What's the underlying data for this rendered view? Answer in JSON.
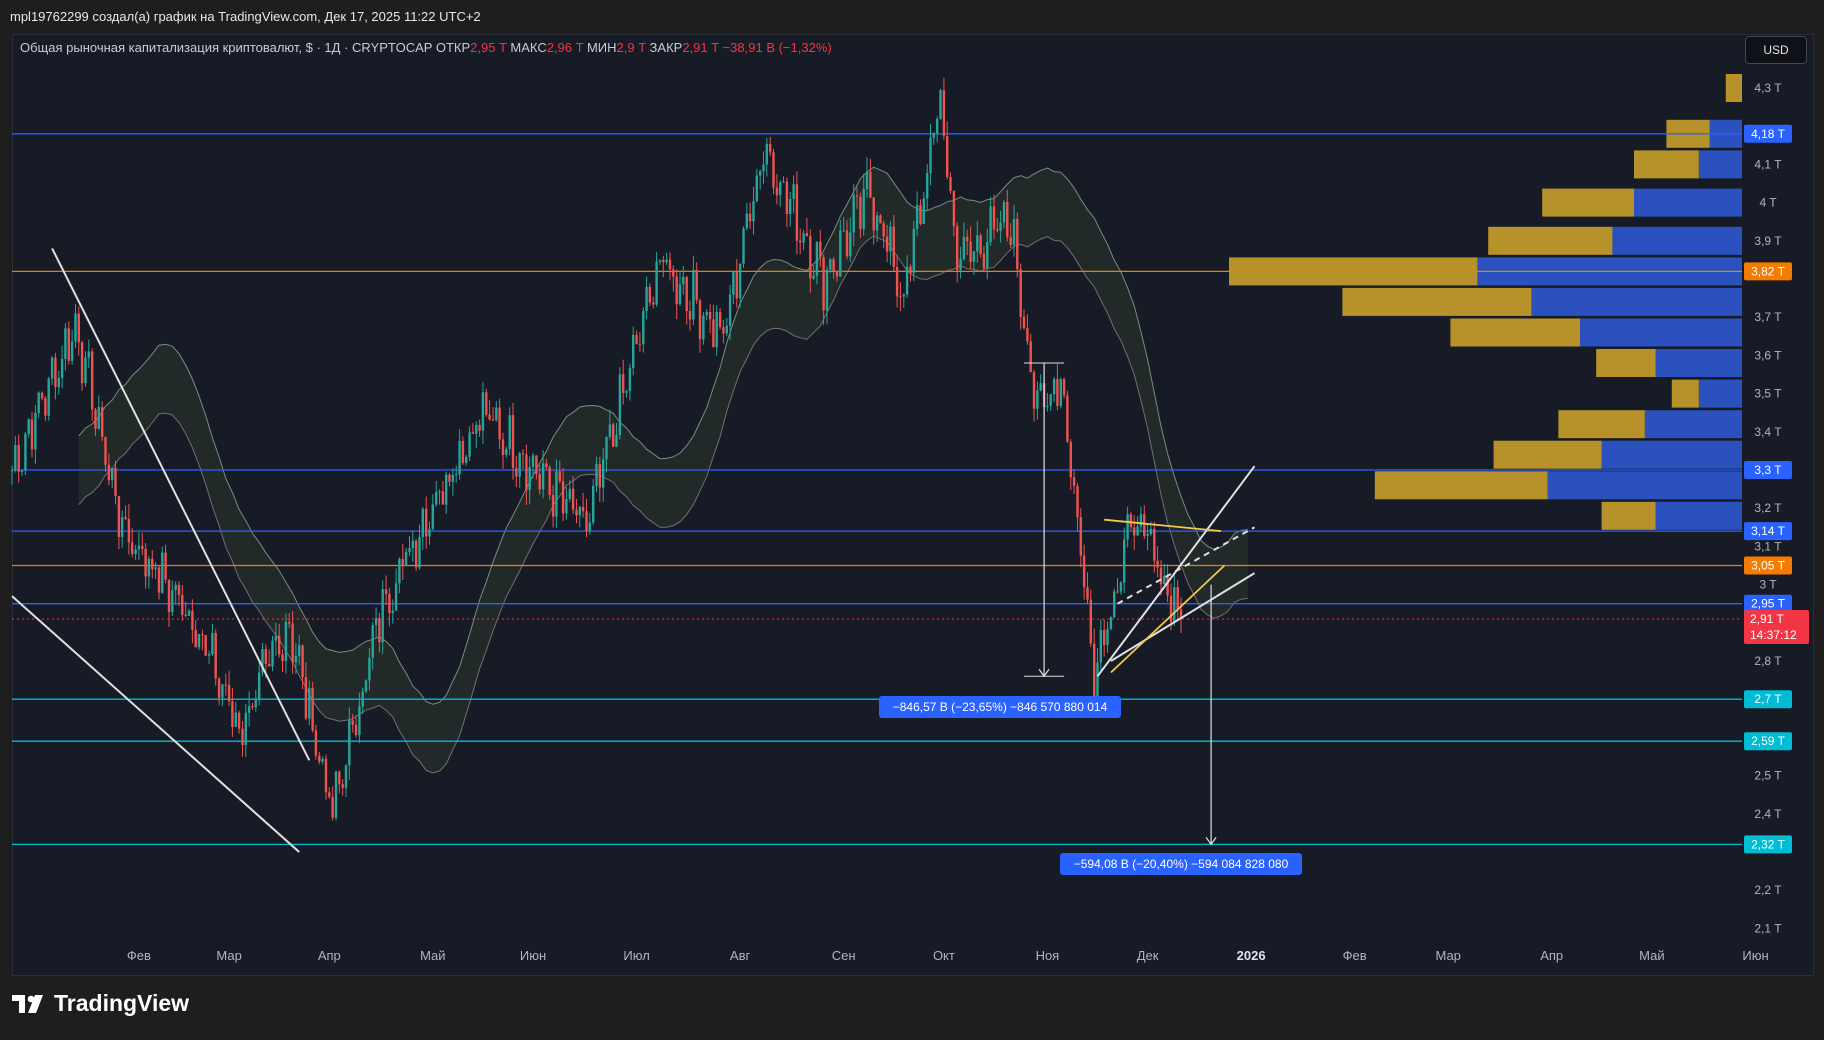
{
  "header": {
    "caption": "mpl19762299 создал(а) график на TradingView.com, Дек 17, 2025 11:22 UTC+2"
  },
  "legend": {
    "title": "Общая рыночная капитализация криптовалют, $ · 1Д · CRYPTOCAP",
    "open_label": "ОТКР",
    "open_value": "2,95 T",
    "high_label": "МАКС",
    "high_value": "2,96 T",
    "low_label": "МИН",
    "low_value": "2,9 T",
    "close_label": "ЗАКР",
    "close_value": "2,91 T",
    "change": "−38,91 B (−1,32%)"
  },
  "currency_button": "USD",
  "logo_text": "TradingView",
  "measurements": [
    {
      "label": "−846,57 B (−23,65%) −846 570 880 014"
    },
    {
      "label": "−594,08 B (−20,40%) −594 084 828 080"
    }
  ],
  "chart_data": {
    "type": "candlestick",
    "title": "Общая рыночная капитализация криптовалют",
    "symbol": "CRYPTOCAP",
    "interval": "1Д",
    "unit": "T",
    "ylim": [
      2.05,
      4.38
    ],
    "y_ticks": [
      "4,3 T",
      "4,1 T",
      "4 T",
      "3,9 T",
      "3,7 T",
      "3,6 T",
      "3,5 T",
      "3,4 T",
      "3,2 T",
      "3,1 T",
      "3 T",
      "2,8 T",
      "2,5 T",
      "2,4 T",
      "2,2 T",
      "2,1 T"
    ],
    "x_ticks": [
      "Фев",
      "Мар",
      "Апр",
      "Май",
      "Июн",
      "Июл",
      "Авг",
      "Сен",
      "Окт",
      "Ноя",
      "Дек",
      "2026",
      "Фев",
      "Мар",
      "Апр",
      "Май",
      "Июн"
    ],
    "grid": false,
    "price_levels": [
      {
        "value": 4.18,
        "label": "4,18 T",
        "color": "#2962ff"
      },
      {
        "value": 3.82,
        "label": "3,82 T",
        "color": "#f57c00"
      },
      {
        "value": 3.3,
        "label": "3,3 T",
        "color": "#2962ff"
      },
      {
        "value": 3.14,
        "label": "3,14 T",
        "color": "#2962ff"
      },
      {
        "value": 3.05,
        "label": "3,05 T",
        "color": "#f57c00"
      },
      {
        "value": 2.95,
        "label": "2,95 T",
        "color": "#2962ff"
      },
      {
        "value": 2.7,
        "label": "2,7 T",
        "color": "#00bcd4"
      },
      {
        "value": 2.59,
        "label": "2,59 T",
        "color": "#00bcd4"
      },
      {
        "value": 2.32,
        "label": "2,32 T",
        "color": "#00bcd4"
      }
    ],
    "last_price": {
      "value": 2.91,
      "label": "2,91 T",
      "countdown": "14:37:12",
      "color": "#f23645"
    },
    "keypoints": [
      {
        "t": "2025-01-01",
        "v": 3.3
      },
      {
        "t": "2025-01-20",
        "v": 3.68
      },
      {
        "t": "2025-02-03",
        "v": 3.15
      },
      {
        "t": "2025-02-25",
        "v": 2.9
      },
      {
        "t": "2025-03-10",
        "v": 2.62
      },
      {
        "t": "2025-03-25",
        "v": 2.9
      },
      {
        "t": "2025-04-07",
        "v": 2.4
      },
      {
        "t": "2025-04-22",
        "v": 2.95
      },
      {
        "t": "2025-05-12",
        "v": 3.3
      },
      {
        "t": "2025-05-22",
        "v": 3.45
      },
      {
        "t": "2025-06-22",
        "v": 3.15
      },
      {
        "t": "2025-07-14",
        "v": 3.85
      },
      {
        "t": "2025-08-02",
        "v": 3.65
      },
      {
        "t": "2025-08-14",
        "v": 4.15
      },
      {
        "t": "2025-09-01",
        "v": 3.8
      },
      {
        "t": "2025-09-15",
        "v": 4.03
      },
      {
        "t": "2025-09-25",
        "v": 3.75
      },
      {
        "t": "2025-10-06",
        "v": 4.27
      },
      {
        "t": "2025-10-11",
        "v": 3.85
      },
      {
        "t": "2025-10-27",
        "v": 3.95
      },
      {
        "t": "2025-11-04",
        "v": 3.45
      },
      {
        "t": "2025-11-11",
        "v": 3.55
      },
      {
        "t": "2025-11-21",
        "v": 2.78
      },
      {
        "t": "2025-12-03",
        "v": 3.18
      },
      {
        "t": "2025-12-17",
        "v": 2.91
      }
    ],
    "volume_profile": [
      {
        "price": 4.3,
        "up": 0.03,
        "down": 0.0
      },
      {
        "price": 4.18,
        "up": 0.08,
        "down": 0.06
      },
      {
        "price": 4.1,
        "up": 0.12,
        "down": 0.08
      },
      {
        "price": 4.0,
        "up": 0.17,
        "down": 0.2
      },
      {
        "price": 3.9,
        "up": 0.23,
        "down": 0.24
      },
      {
        "price": 3.82,
        "up": 0.46,
        "down": 0.49
      },
      {
        "price": 3.74,
        "up": 0.35,
        "down": 0.39
      },
      {
        "price": 3.66,
        "up": 0.24,
        "down": 0.3
      },
      {
        "price": 3.58,
        "up": 0.11,
        "down": 0.16
      },
      {
        "price": 3.5,
        "up": 0.05,
        "down": 0.08
      },
      {
        "price": 3.42,
        "up": 0.16,
        "down": 0.18
      },
      {
        "price": 3.34,
        "up": 0.2,
        "down": 0.26
      },
      {
        "price": 3.26,
        "up": 0.32,
        "down": 0.36
      },
      {
        "price": 3.18,
        "up": 0.1,
        "down": 0.16
      }
    ]
  }
}
